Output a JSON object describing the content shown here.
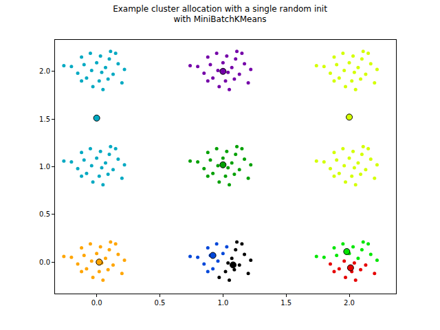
{
  "chart_data": {
    "type": "scatter",
    "title": "Example cluster allocation with a single random init\nwith MiniBatchKMeans",
    "marker": "circle",
    "grid": false,
    "xlim": [
      -0.33,
      2.37
    ],
    "ylim": [
      -0.33,
      2.33
    ],
    "xticks": [
      {
        "value": 0,
        "label": "0.0"
      },
      {
        "value": 0.5,
        "label": "0.5"
      },
      {
        "value": 1,
        "label": "1.0"
      },
      {
        "value": 1.5,
        "label": "1.5"
      },
      {
        "value": 2,
        "label": "2.0"
      }
    ],
    "yticks": [
      {
        "value": 0,
        "label": "0.0"
      },
      {
        "value": 0.5,
        "label": "0.5"
      },
      {
        "value": 1,
        "label": "1.0"
      },
      {
        "value": 1.5,
        "label": "1.5"
      },
      {
        "value": 2,
        "label": "2.0"
      }
    ],
    "series": [
      {
        "color": "#00a9c2",
        "centroid": [
          0,
          1.51
        ],
        "x": [
          -0.12,
          -0.05,
          0.03,
          0.1,
          0.17,
          -0.2,
          -0.1,
          0.0,
          0.07,
          0.22,
          -0.15,
          -0.04,
          0.04,
          0.13,
          -0.08,
          0.02,
          0.09,
          0.2,
          -0.03,
          0.05,
          -0.12,
          0.15,
          -0.26,
          0.11,
          -0.12,
          -0.05,
          0.03,
          0.1,
          0.17,
          -0.2,
          -0.1,
          0.0,
          0.07,
          0.22,
          -0.15,
          -0.04,
          0.04,
          0.13,
          -0.08,
          0.02,
          0.09,
          0.2,
          -0.03,
          0.05,
          -0.12,
          0.15,
          -0.26,
          0.11
        ],
        "values": [
          2.15,
          2.19,
          2.16,
          2.13,
          2.08,
          2.05,
          2.07,
          2.09,
          2.04,
          2.02,
          1.98,
          2.01,
          1.99,
          1.97,
          1.93,
          1.9,
          1.92,
          1.88,
          1.84,
          1.81,
          1.9,
          2.19,
          2.06,
          2.21,
          1.15,
          1.19,
          1.16,
          1.13,
          1.08,
          1.05,
          1.07,
          1.09,
          1.04,
          1.02,
          0.98,
          1.01,
          0.99,
          0.97,
          0.93,
          0.9,
          0.92,
          0.88,
          0.84,
          0.81,
          0.9,
          1.19,
          1.06,
          1.21
        ]
      },
      {
        "color": "#7400a8",
        "centroid": [
          1,
          2.0
        ],
        "x": [
          0.88,
          0.95,
          1.03,
          1.1,
          1.17,
          0.8,
          0.9,
          1.0,
          1.07,
          1.22,
          0.85,
          0.96,
          1.04,
          1.13,
          0.92,
          1.02,
          1.09,
          1.2,
          0.97,
          1.05,
          0.88,
          1.15,
          0.74,
          1.11
        ],
        "values": [
          2.15,
          2.19,
          2.16,
          2.13,
          2.08,
          2.05,
          2.07,
          2.09,
          2.04,
          2.02,
          1.98,
          2.01,
          1.99,
          1.97,
          1.93,
          1.9,
          1.92,
          1.88,
          1.84,
          1.81,
          1.9,
          2.19,
          2.06,
          2.21
        ]
      },
      {
        "color": "#d4ff00",
        "centroid": [
          2,
          1.52
        ],
        "x": [
          1.88,
          1.95,
          2.03,
          2.1,
          2.17,
          1.8,
          1.9,
          2.0,
          2.07,
          2.22,
          1.85,
          1.96,
          2.04,
          2.13,
          1.92,
          2.02,
          2.09,
          2.2,
          1.97,
          2.05,
          1.88,
          2.15,
          1.74,
          2.11,
          1.88,
          1.95,
          2.03,
          2.1,
          2.17,
          1.8,
          1.9,
          2.0,
          2.07,
          2.22,
          1.85,
          1.96,
          2.04,
          2.13,
          1.92,
          2.02,
          2.09,
          2.2,
          1.97,
          2.05,
          1.88,
          2.15,
          1.74,
          2.11
        ],
        "values": [
          2.15,
          2.19,
          2.16,
          2.13,
          2.08,
          2.05,
          2.07,
          2.09,
          2.04,
          2.02,
          1.98,
          2.01,
          1.99,
          1.97,
          1.93,
          1.9,
          1.92,
          1.88,
          1.84,
          1.81,
          1.9,
          2.19,
          2.06,
          2.21,
          1.15,
          1.19,
          1.16,
          1.13,
          1.08,
          1.05,
          1.07,
          1.09,
          1.04,
          1.02,
          0.98,
          1.01,
          0.99,
          0.97,
          0.93,
          0.9,
          0.92,
          0.88,
          0.84,
          0.81,
          0.9,
          1.19,
          1.06,
          1.21
        ]
      },
      {
        "color": "#00a000",
        "centroid": [
          1,
          1.02
        ],
        "x": [
          0.88,
          0.95,
          1.03,
          1.1,
          1.17,
          0.8,
          0.9,
          1.0,
          1.07,
          1.22,
          0.85,
          0.96,
          1.04,
          1.13,
          0.92,
          1.02,
          1.09,
          1.2,
          0.97,
          1.05,
          0.88,
          1.15,
          0.74,
          1.11
        ],
        "values": [
          1.15,
          1.19,
          1.16,
          1.13,
          1.08,
          1.05,
          1.07,
          1.09,
          1.04,
          1.02,
          0.98,
          1.01,
          0.99,
          0.97,
          0.93,
          0.9,
          0.92,
          0.88,
          0.84,
          0.81,
          0.9,
          1.19,
          1.06,
          1.21
        ]
      },
      {
        "color": "#ffa500",
        "centroid": [
          0.02,
          0.0
        ],
        "x": [
          -0.12,
          -0.05,
          0.03,
          0.1,
          0.17,
          -0.2,
          -0.1,
          0.0,
          0.07,
          0.22,
          -0.15,
          -0.04,
          0.04,
          0.13,
          -0.08,
          0.02,
          0.09,
          0.2,
          -0.03,
          0.05,
          -0.12,
          0.15,
          -0.26,
          0.11
        ],
        "values": [
          0.15,
          0.19,
          0.16,
          0.13,
          0.08,
          0.05,
          0.07,
          0.09,
          0.04,
          0.02,
          -0.02,
          0.01,
          -0.01,
          -0.03,
          -0.07,
          -0.1,
          -0.08,
          -0.12,
          -0.16,
          -0.19,
          -0.1,
          0.19,
          0.06,
          0.21
        ]
      },
      {
        "color": "#0047d9",
        "centroid": [
          0.92,
          0.07
        ],
        "x": [
          0.88,
          0.95,
          1.03,
          0.8,
          0.9,
          1.0,
          0.85,
          0.96,
          0.92,
          0.88,
          0.74
        ],
        "values": [
          0.15,
          0.19,
          0.16,
          0.05,
          0.07,
          0.09,
          -0.02,
          0.01,
          -0.07,
          -0.1,
          0.06
        ]
      },
      {
        "color": "#000000",
        "centroid": [
          1.08,
          -0.03
        ],
        "x": [
          1.1,
          1.17,
          1.07,
          1.22,
          1.04,
          1.13,
          1.02,
          1.09,
          1.2,
          0.97,
          1.05,
          1.15,
          1.11
        ],
        "values": [
          0.13,
          0.08,
          0.04,
          0.02,
          -0.01,
          -0.03,
          -0.1,
          -0.08,
          -0.12,
          -0.16,
          -0.19,
          0.19,
          0.21
        ]
      },
      {
        "color": "#00e600",
        "centroid": [
          1.98,
          0.11
        ],
        "x": [
          1.88,
          1.95,
          2.03,
          2.1,
          2.17,
          1.8,
          1.9,
          2.0,
          2.07,
          2.22,
          2.15,
          1.74,
          2.11
        ],
        "values": [
          0.15,
          0.19,
          0.16,
          0.13,
          0.08,
          0.05,
          0.07,
          0.09,
          0.04,
          0.02,
          0.19,
          0.06,
          0.21
        ]
      },
      {
        "color": "#e60000",
        "centroid": [
          2.01,
          -0.06
        ],
        "x": [
          1.85,
          1.96,
          2.04,
          2.13,
          1.92,
          2.02,
          2.09,
          2.2,
          1.97,
          2.05,
          1.88
        ],
        "values": [
          -0.02,
          0.01,
          -0.01,
          -0.03,
          -0.07,
          -0.1,
          -0.08,
          -0.12,
          -0.16,
          -0.19,
          -0.1
        ]
      }
    ]
  }
}
